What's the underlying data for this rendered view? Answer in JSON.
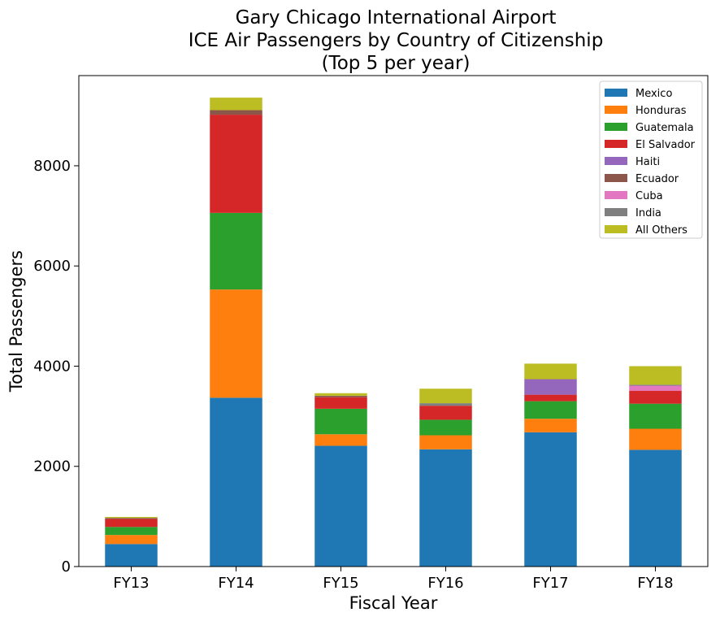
{
  "chart_data": {
    "type": "bar",
    "stacked": true,
    "title_lines": [
      "Gary Chicago International Airport",
      "ICE Air Passengers by Country of Citizenship",
      "(Top 5 per year)"
    ],
    "xlabel": "Fiscal Year",
    "ylabel": "Total Passengers",
    "ylim": [
      0,
      9800
    ],
    "yticks": [
      0,
      2000,
      4000,
      6000,
      8000
    ],
    "categories": [
      "FY13",
      "FY14",
      "FY15",
      "FY16",
      "FY17",
      "FY18"
    ],
    "legend_position": "top-right",
    "grid": false,
    "series": [
      {
        "name": "Mexico",
        "color": "#1f77b4",
        "values": [
          450,
          3370,
          2410,
          2340,
          2680,
          2330
        ]
      },
      {
        "name": "Honduras",
        "color": "#ff7f0e",
        "values": [
          180,
          2160,
          230,
          280,
          270,
          420
        ]
      },
      {
        "name": "Guatemala",
        "color": "#2ca02c",
        "values": [
          160,
          1530,
          510,
          310,
          350,
          500
        ]
      },
      {
        "name": "El Salvador",
        "color": "#d62728",
        "values": [
          160,
          1960,
          230,
          280,
          130,
          260
        ]
      },
      {
        "name": "Haiti",
        "color": "#9467bd",
        "values": [
          0,
          0,
          0,
          0,
          310,
          0
        ]
      },
      {
        "name": "Ecuador",
        "color": "#8c564b",
        "values": [
          20,
          90,
          30,
          0,
          0,
          0
        ]
      },
      {
        "name": "Cuba",
        "color": "#e377c2",
        "values": [
          0,
          0,
          0,
          0,
          0,
          100
        ]
      },
      {
        "name": "India",
        "color": "#7f7f7f",
        "values": [
          0,
          0,
          0,
          50,
          0,
          20
        ]
      },
      {
        "name": "All Others",
        "color": "#bcbd22",
        "values": [
          20,
          250,
          50,
          290,
          310,
          370
        ]
      }
    ]
  }
}
